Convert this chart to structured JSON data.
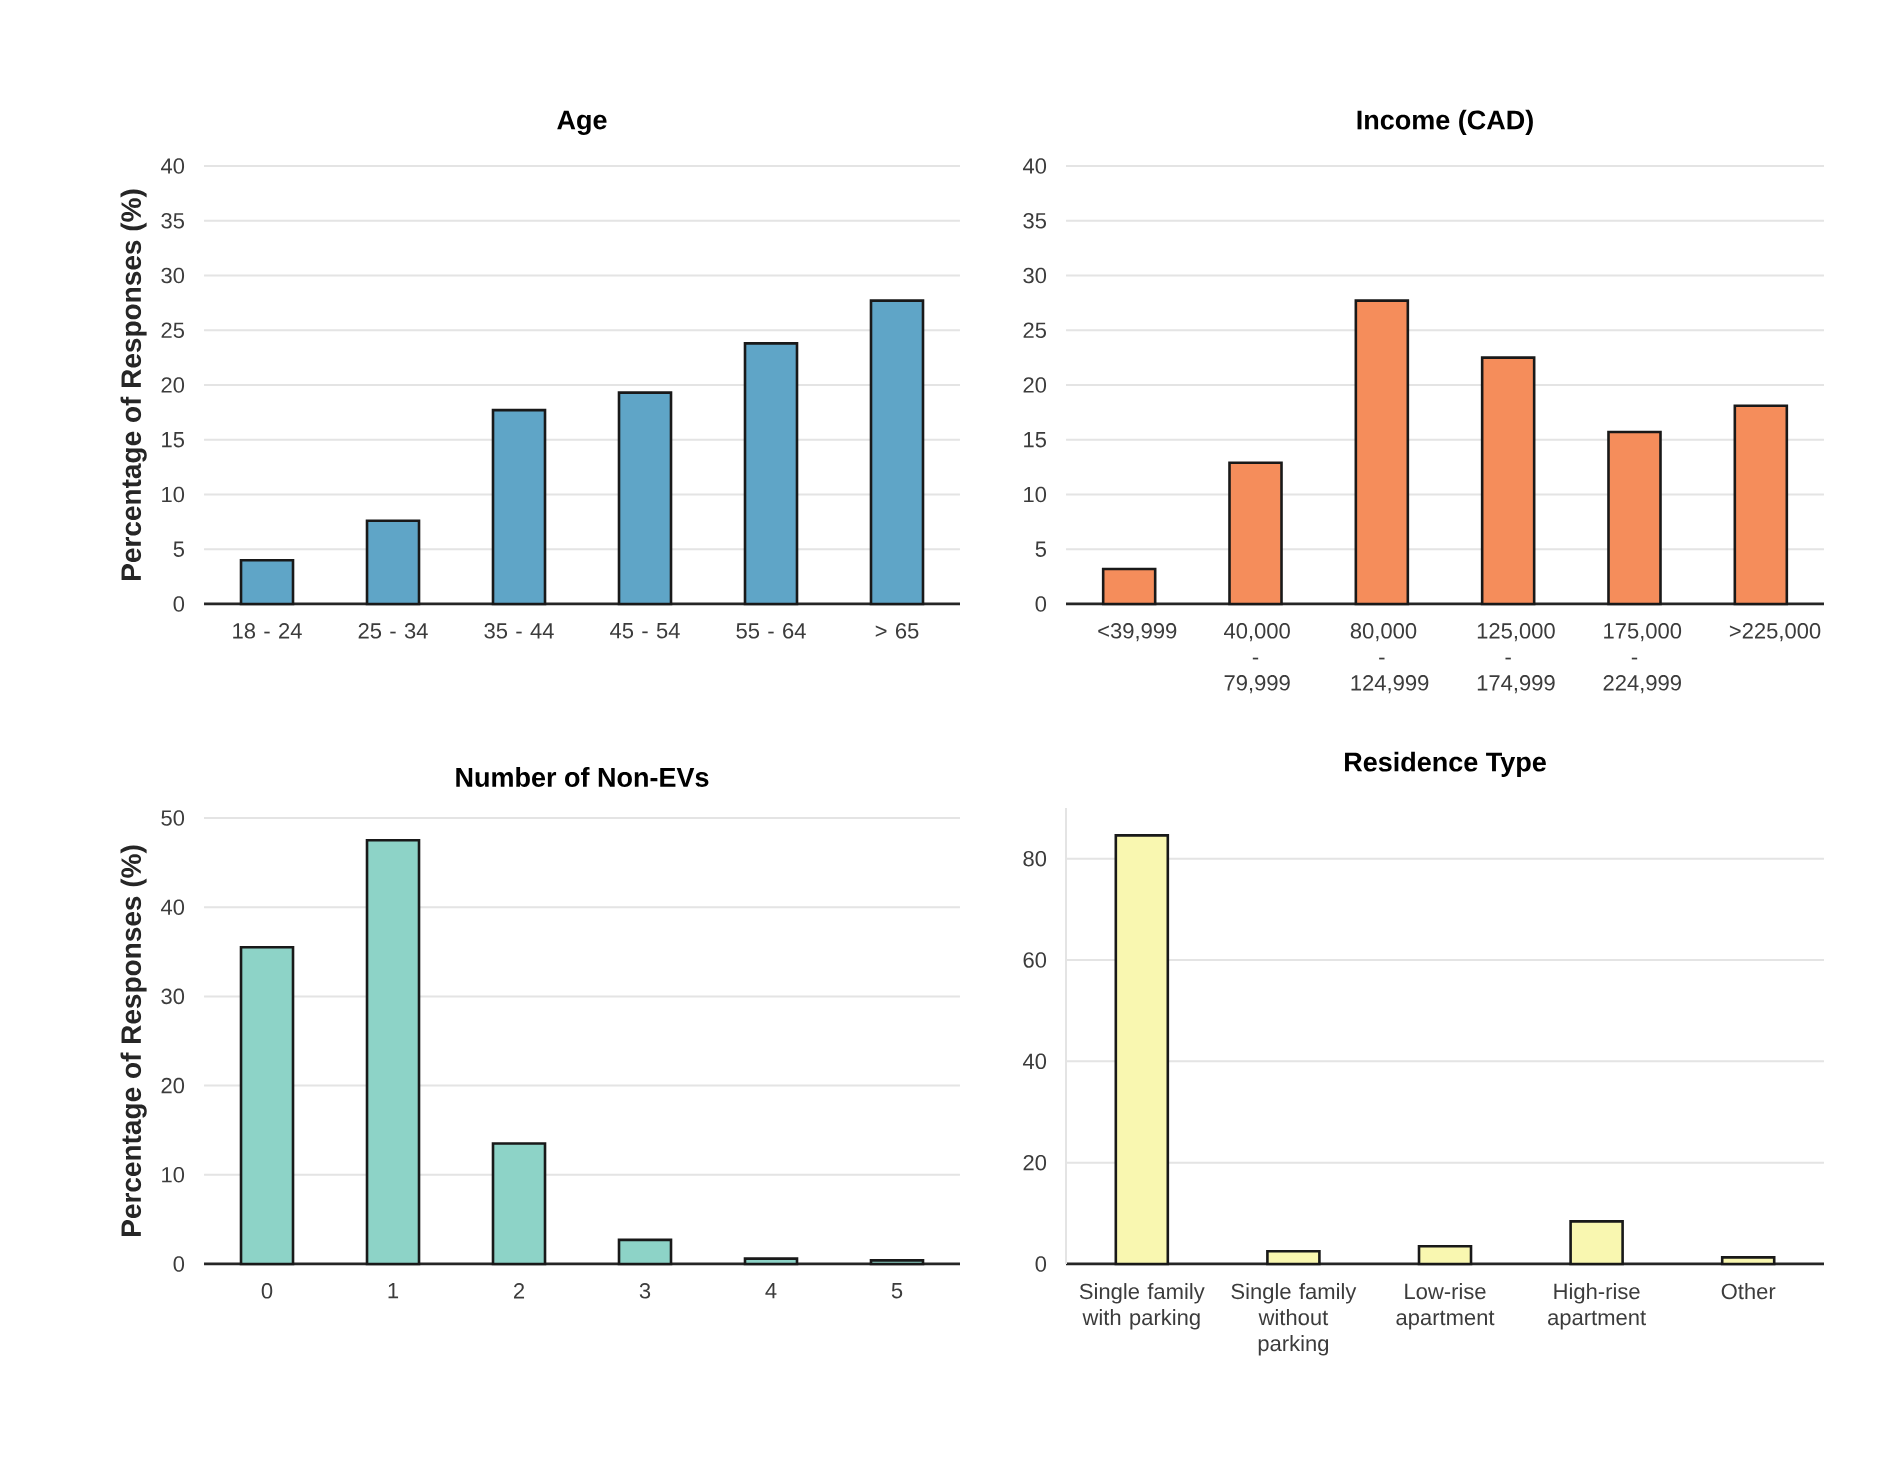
{
  "chart_data": [
    {
      "type": "bar",
      "title": "Age",
      "ylabel": "Percentage of Responses (%)",
      "categories": [
        "18 - 24",
        "25 - 34",
        "35 - 44",
        "45 - 54",
        "55 - 64",
        "> 65"
      ],
      "values": [
        4.0,
        7.6,
        17.7,
        19.3,
        23.8,
        27.7
      ],
      "color": "#5fa5c7",
      "ylim": [
        0,
        40
      ],
      "yticks": [
        0,
        5,
        10,
        15,
        20,
        25,
        30,
        35,
        40
      ],
      "grid": "y"
    },
    {
      "type": "bar",
      "title": "Income (CAD)",
      "categories": [
        "<39,999",
        "40,000 - 79,999",
        "80,000 - 124,999",
        "125,000 - 174,999",
        "175,000 - 224,999",
        ">225,000"
      ],
      "values": [
        3.2,
        12.9,
        27.7,
        22.5,
        15.7,
        18.1
      ],
      "color": "#f58d5b",
      "ylim": [
        0,
        40
      ],
      "yticks": [
        0,
        5,
        10,
        15,
        20,
        25,
        30,
        35,
        40
      ],
      "grid": "y"
    },
    {
      "type": "bar",
      "title": "Number of Non-EVs",
      "ylabel": "Percentage of Responses (%)",
      "categories": [
        "0",
        "1",
        "2",
        "3",
        "4",
        "5"
      ],
      "values": [
        35.5,
        47.5,
        13.5,
        2.7,
        0.6,
        0.4
      ],
      "color": "#8dd3c7",
      "ylim": [
        0,
        50
      ],
      "yticks": [
        0,
        10,
        20,
        30,
        40,
        50
      ],
      "grid": "y"
    },
    {
      "type": "bar",
      "title": "Residence Type",
      "categories": [
        "Single family with parking",
        "Single family without parking",
        "Low-rise apartment",
        "High-rise apartment",
        "Other"
      ],
      "values": [
        84.6,
        2.5,
        3.5,
        8.4,
        1.3
      ],
      "color": "#f9f7b0",
      "ylim": [
        0,
        90
      ],
      "yticks": [
        0,
        20,
        40,
        60,
        80
      ],
      "grid": "y"
    }
  ]
}
